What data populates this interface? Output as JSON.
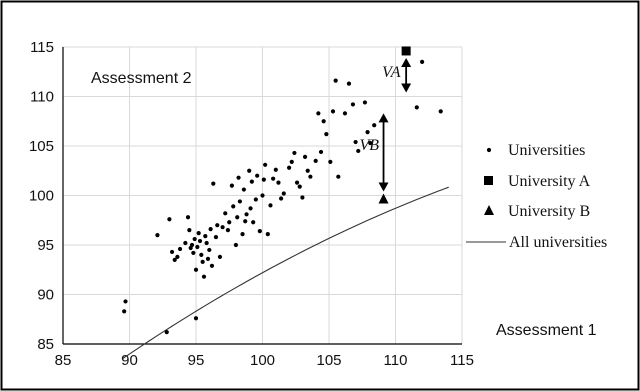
{
  "chart_data": {
    "type": "scatter",
    "assessment_x_label": "Assessment 1",
    "assessment_y_label": "Assessment 2",
    "xlim": [
      85,
      115
    ],
    "ylim": [
      85,
      115
    ],
    "x_ticks": [
      85,
      90,
      95,
      100,
      105,
      110,
      115
    ],
    "y_ticks": [
      85,
      90,
      95,
      100,
      105,
      110,
      115
    ],
    "grid": true,
    "legend": {
      "placement": "right",
      "items": [
        {
          "label": "Universities",
          "marker": "dot"
        },
        {
          "label": "University A",
          "marker": "square"
        },
        {
          "label": "University B",
          "marker": "triangle"
        },
        {
          "label": "All universities",
          "marker": "line"
        }
      ]
    },
    "series": [
      {
        "name": "Universities",
        "points": [
          [
            89.6,
            88.3
          ],
          [
            89.7,
            89.3
          ],
          [
            92.8,
            86.2
          ],
          [
            92.1,
            96.0
          ],
          [
            93.0,
            97.6
          ],
          [
            93.2,
            94.3
          ],
          [
            93.4,
            93.5
          ],
          [
            93.6,
            93.8
          ],
          [
            93.8,
            94.6
          ],
          [
            94.2,
            95.2
          ],
          [
            94.4,
            97.8
          ],
          [
            94.5,
            96.5
          ],
          [
            94.6,
            94.7
          ],
          [
            94.7,
            95.0
          ],
          [
            94.8,
            94.2
          ],
          [
            94.9,
            95.6
          ],
          [
            95.0,
            92.5
          ],
          [
            95.0,
            87.6
          ],
          [
            95.1,
            94.8
          ],
          [
            95.2,
            96.2
          ],
          [
            95.3,
            95.4
          ],
          [
            95.4,
            94.0
          ],
          [
            95.5,
            93.3
          ],
          [
            95.6,
            91.8
          ],
          [
            95.7,
            95.9
          ],
          [
            95.8,
            95.2
          ],
          [
            95.9,
            93.6
          ],
          [
            96.0,
            94.5
          ],
          [
            96.1,
            96.6
          ],
          [
            96.2,
            92.9
          ],
          [
            96.3,
            101.2
          ],
          [
            96.5,
            95.8
          ],
          [
            96.6,
            97.0
          ],
          [
            96.8,
            93.8
          ],
          [
            97.0,
            96.8
          ],
          [
            97.2,
            98.2
          ],
          [
            97.4,
            96.5
          ],
          [
            97.5,
            97.3
          ],
          [
            97.7,
            101.0
          ],
          [
            97.8,
            98.9
          ],
          [
            98.0,
            95.0
          ],
          [
            98.1,
            97.8
          ],
          [
            98.2,
            101.8
          ],
          [
            98.3,
            99.4
          ],
          [
            98.5,
            96.1
          ],
          [
            98.6,
            100.6
          ],
          [
            98.7,
            97.4
          ],
          [
            98.8,
            98.1
          ],
          [
            99.0,
            102.5
          ],
          [
            99.1,
            98.7
          ],
          [
            99.2,
            101.4
          ],
          [
            99.3,
            97.3
          ],
          [
            99.5,
            99.6
          ],
          [
            99.6,
            102.0
          ],
          [
            99.8,
            96.4
          ],
          [
            100.0,
            100.0
          ],
          [
            100.1,
            101.6
          ],
          [
            100.2,
            103.1
          ],
          [
            100.4,
            96.1
          ],
          [
            100.6,
            99.0
          ],
          [
            100.8,
            101.7
          ],
          [
            101.0,
            102.6
          ],
          [
            101.2,
            101.3
          ],
          [
            101.4,
            99.7
          ],
          [
            101.6,
            100.2
          ],
          [
            102.0,
            102.8
          ],
          [
            102.2,
            103.4
          ],
          [
            102.4,
            104.3
          ],
          [
            102.6,
            101.3
          ],
          [
            102.8,
            100.9
          ],
          [
            103.0,
            99.8
          ],
          [
            103.2,
            103.9
          ],
          [
            103.4,
            102.5
          ],
          [
            103.6,
            101.9
          ],
          [
            104.0,
            103.5
          ],
          [
            104.2,
            108.3
          ],
          [
            104.4,
            104.4
          ],
          [
            104.6,
            107.5
          ],
          [
            104.8,
            106.2
          ],
          [
            105.1,
            103.4
          ],
          [
            105.3,
            108.5
          ],
          [
            105.5,
            111.6
          ],
          [
            105.7,
            101.9
          ],
          [
            106.2,
            108.3
          ],
          [
            106.5,
            111.3
          ],
          [
            106.8,
            109.2
          ],
          [
            107.0,
            105.4
          ],
          [
            107.2,
            104.5
          ],
          [
            107.7,
            109.4
          ],
          [
            107.9,
            106.4
          ],
          [
            108.1,
            105.3
          ],
          [
            108.4,
            107.1
          ],
          [
            111.6,
            108.9
          ],
          [
            112.0,
            113.5
          ],
          [
            113.4,
            108.5
          ]
        ]
      },
      {
        "name": "University A",
        "points": [
          [
            110.8,
            114.6
          ]
        ]
      },
      {
        "name": "University B",
        "points": [
          [
            109.1,
            99.6
          ]
        ]
      },
      {
        "name": "All universities",
        "fit": {
          "form": "quadratic",
          "coefficients": [
            -0.0085,
            2.436,
            -66.4
          ],
          "x_range": [
            89.5,
            114
          ]
        }
      }
    ],
    "annotations": [
      {
        "label": "VA",
        "from": [
          110.8,
          114.6
        ],
        "to": [
          110.8,
          110.3
        ]
      },
      {
        "label": "VB",
        "from": [
          109.1,
          99.6
        ],
        "to": [
          109.1,
          108.4
        ]
      }
    ]
  }
}
